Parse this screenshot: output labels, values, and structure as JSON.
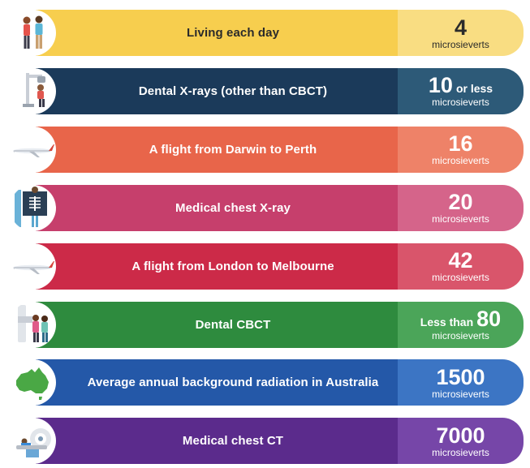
{
  "chart_data": {
    "type": "bar",
    "title": "",
    "xlabel": "",
    "ylabel": "microsieverts",
    "categories": [
      "Living each day",
      "Dental X-rays (other than CBCT)",
      "A flight from Darwin to Perth",
      "Medical chest X-ray",
      "A flight from London to Melbourne",
      "Dental CBCT",
      "Average annual background radiation in Australia",
      "Medical chest CT"
    ],
    "values": [
      4,
      10,
      16,
      20,
      42,
      80,
      1500,
      7000
    ],
    "items": [
      {
        "label": "Living each day",
        "prefix": "",
        "value": "4",
        "suffix": "",
        "unit": "microsieverts",
        "color": "#F7CE4E",
        "value_color": "#F9DD82",
        "icon": "people-icon"
      },
      {
        "label": "Dental X-rays (other than CBCT)",
        "prefix": "",
        "value": "10",
        "suffix": "or less",
        "unit": "microsieverts",
        "color": "#1B3A5A",
        "value_color": "#2D5A78",
        "icon": "dental-xray-icon"
      },
      {
        "label": "A flight from Darwin to Perth",
        "prefix": "",
        "value": "16",
        "suffix": "",
        "unit": "microsieverts",
        "color": "#E8654A",
        "value_color": "#EE8268",
        "icon": "airplane-icon"
      },
      {
        "label": "Medical chest X-ray",
        "prefix": "",
        "value": "20",
        "suffix": "",
        "unit": "microsieverts",
        "color": "#C63F6C",
        "value_color": "#D5648A",
        "icon": "chest-xray-icon"
      },
      {
        "label": "A flight from London to Melbourne",
        "prefix": "",
        "value": "42",
        "suffix": "",
        "unit": "microsieverts",
        "color": "#CC2A48",
        "value_color": "#D9556B",
        "icon": "airplane-icon"
      },
      {
        "label": "Dental CBCT",
        "prefix": "Less than",
        "value": "80",
        "suffix": "",
        "unit": "microsieverts",
        "color": "#2E8B3E",
        "value_color": "#4BA559",
        "icon": "cbct-icon"
      },
      {
        "label": "Average annual background radiation in Australia",
        "prefix": "",
        "value": "1500",
        "suffix": "",
        "unit": "microsieverts",
        "color": "#2458A8",
        "value_color": "#3C75C4",
        "icon": "australia-map-icon"
      },
      {
        "label": "Medical chest CT",
        "prefix": "",
        "value": "7000",
        "suffix": "",
        "unit": "microsieverts",
        "color": "#5B2B8C",
        "value_color": "#7646A8",
        "icon": "ct-scanner-icon"
      }
    ]
  }
}
